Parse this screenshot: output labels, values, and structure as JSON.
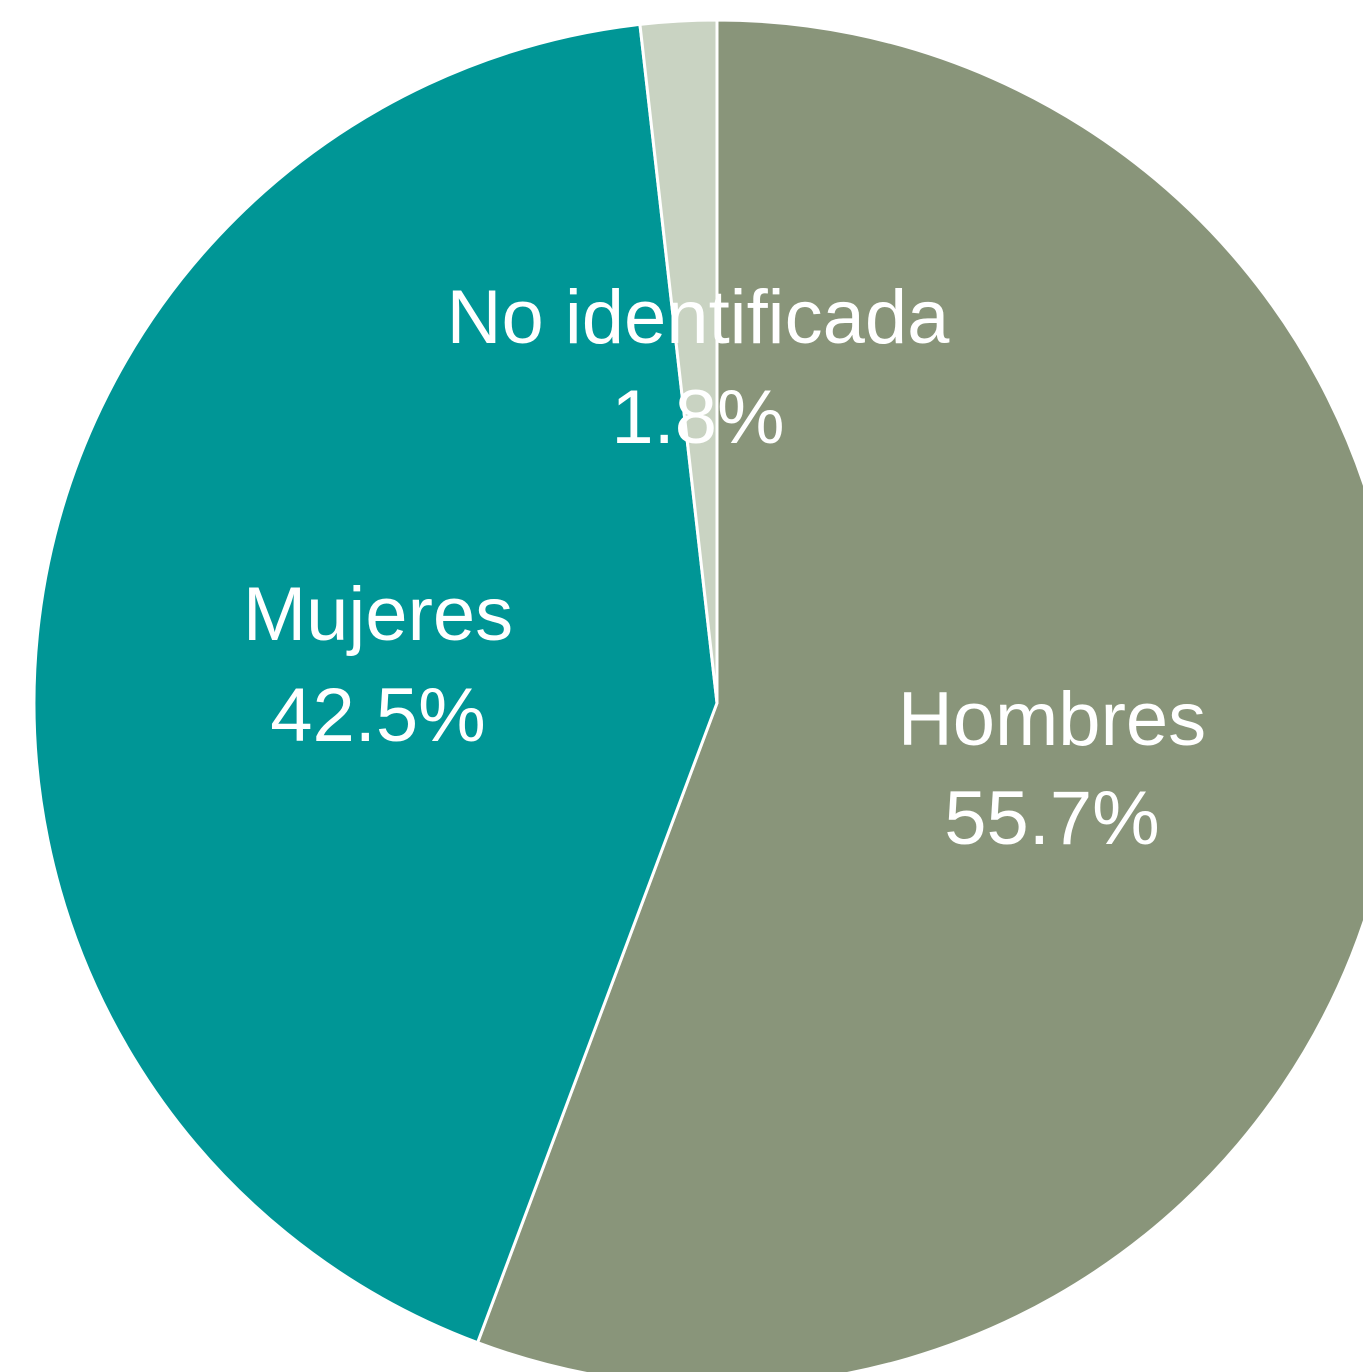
{
  "chart_data": {
    "type": "pie",
    "start_angle_deg": 0,
    "direction": "clockwise",
    "slices": [
      {
        "name": "Hombres",
        "value": 55.7,
        "label": "55.7%",
        "color": "#89957A"
      },
      {
        "name": "Mujeres",
        "value": 42.5,
        "label": "42.5%",
        "color": "#009696"
      },
      {
        "name": "No identificada",
        "value": 1.8,
        "label": "1.8%",
        "color": "#C9D3C2"
      }
    ]
  }
}
